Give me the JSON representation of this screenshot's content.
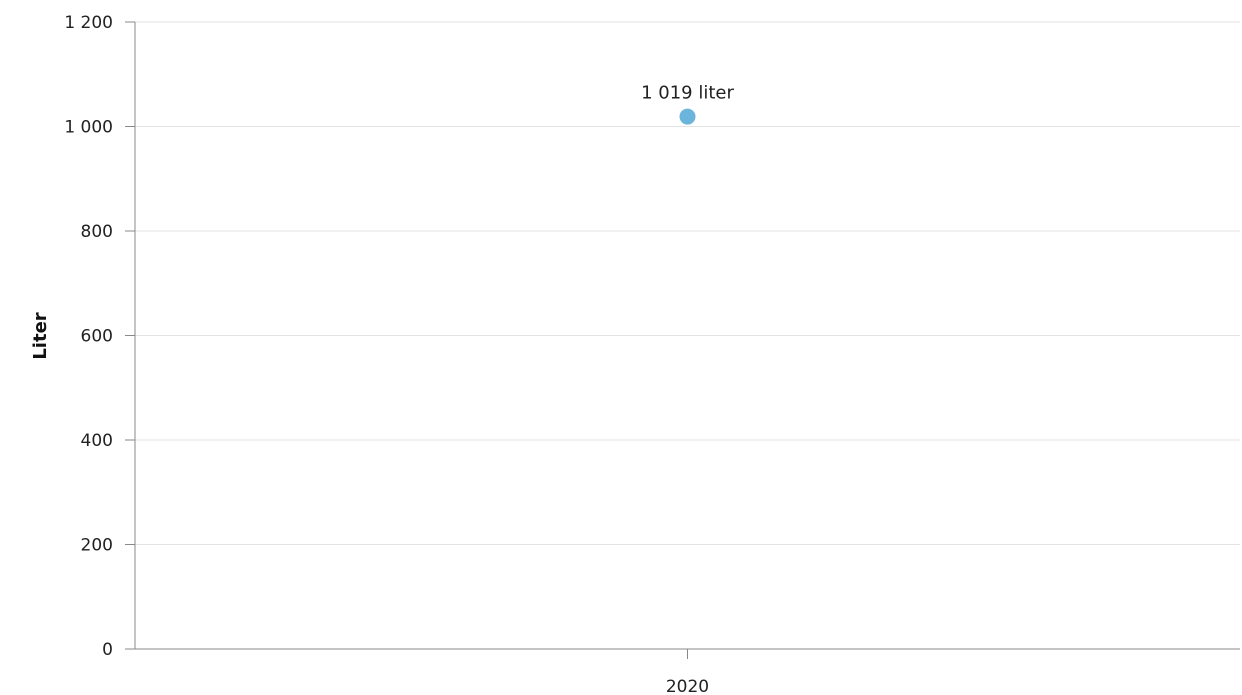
{
  "chart_data": {
    "type": "scatter",
    "title": "",
    "xlabel": "",
    "ylabel": "Liter",
    "categories": [
      "2020"
    ],
    "series": [
      {
        "values": [
          1019
        ],
        "data_labels": [
          "1 019 liter"
        ],
        "color": "#6bb4dc"
      }
    ],
    "ylim": [
      0,
      1200
    ],
    "y_ticks": [
      {
        "value": 0,
        "label": "0"
      },
      {
        "value": 200,
        "label": "200"
      },
      {
        "value": 400,
        "label": "400"
      },
      {
        "value": 600,
        "label": "600"
      },
      {
        "value": 800,
        "label": "800"
      },
      {
        "value": 1000,
        "label": "1 000"
      },
      {
        "value": 1200,
        "label": "1 200"
      }
    ],
    "grid": true,
    "legend": "none",
    "colors": {
      "grid": "#e3e3e3",
      "axis": "#888888"
    }
  }
}
